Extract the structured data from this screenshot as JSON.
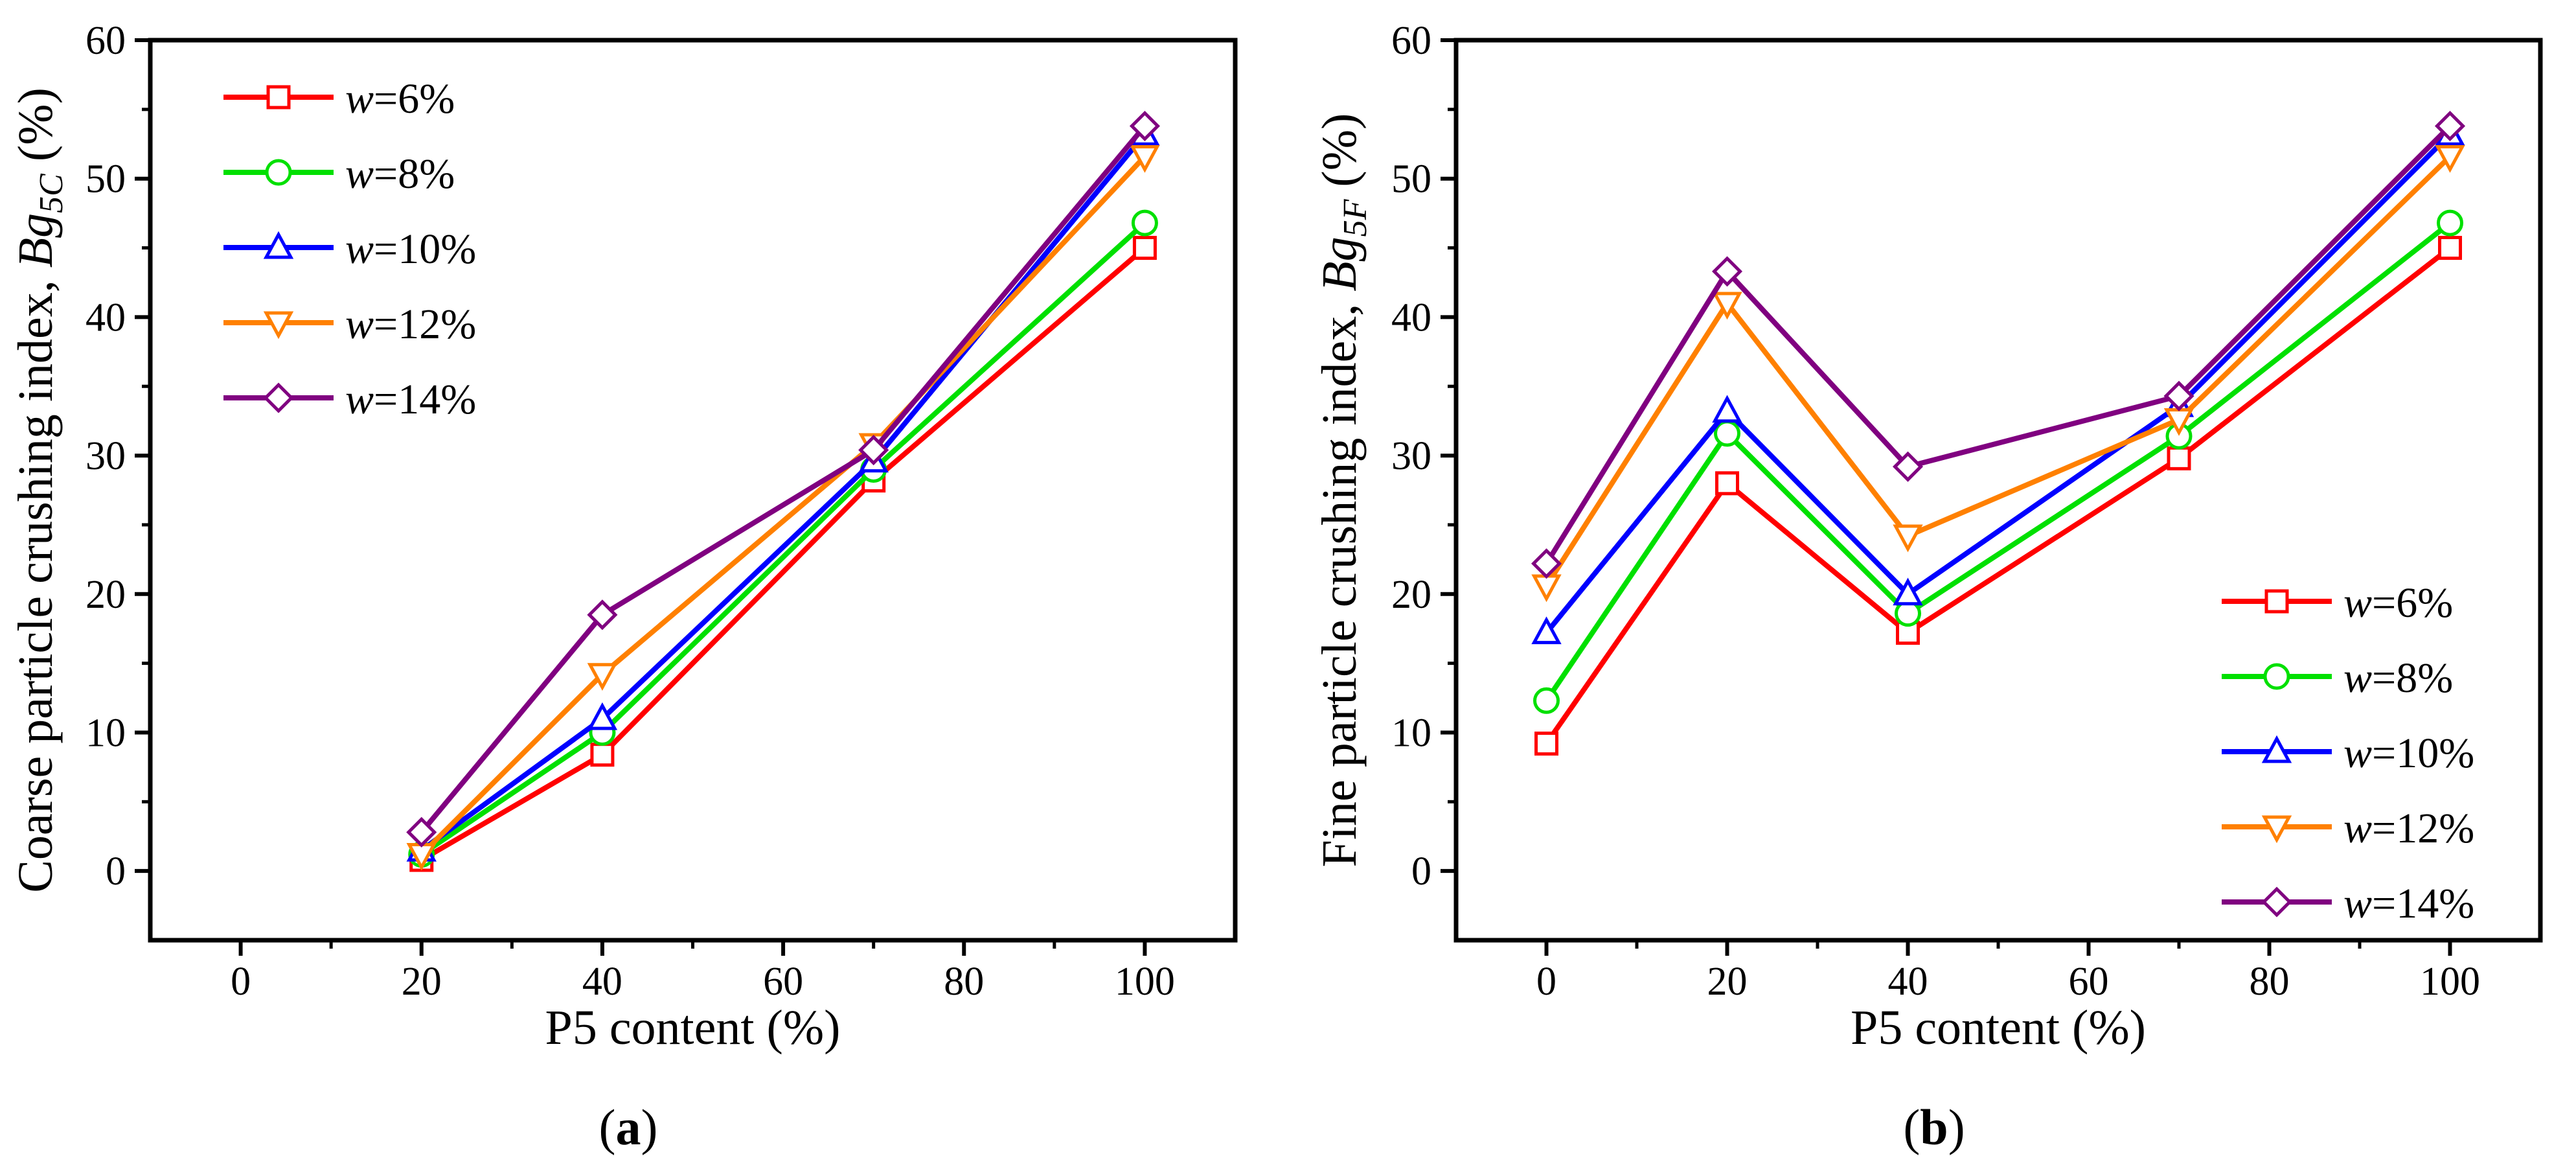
{
  "chart_data": [
    {
      "type": "line",
      "panel_label": "a",
      "xlabel": "P5 content (%)",
      "ylabel_prefix": "Coarse particle crushing index, ",
      "ylabel_var": "Bg",
      "ylabel_sub": "5C",
      "ylabel_suffix": " (%)",
      "xlim": [
        -10,
        110
      ],
      "ylim": [
        -5,
        60
      ],
      "xticks": [
        0,
        20,
        40,
        60,
        80,
        100
      ],
      "yticks": [
        0,
        10,
        20,
        30,
        40,
        50,
        60
      ],
      "legend_position": "top-left",
      "x": [
        20,
        40,
        70,
        100
      ],
      "series": [
        {
          "name_var": "w",
          "name_val": "=6%",
          "color": "#ff0000",
          "marker": "square",
          "values": [
            0.8,
            8.4,
            28.2,
            45.0
          ]
        },
        {
          "name_var": "w",
          "name_val": "=8%",
          "color": "#00e000",
          "marker": "circle",
          "values": [
            1.2,
            10.0,
            29.0,
            46.8
          ]
        },
        {
          "name_var": "w",
          "name_val": "=10%",
          "color": "#0000ff",
          "marker": "triangle-up",
          "values": [
            1.5,
            11.0,
            29.6,
            53.2
          ]
        },
        {
          "name_var": "w",
          "name_val": "=12%",
          "color": "#ff8000",
          "marker": "triangle-down",
          "values": [
            1.2,
            14.2,
            30.8,
            51.6
          ]
        },
        {
          "name_var": "w",
          "name_val": "=14%",
          "color": "#800080",
          "marker": "diamond",
          "values": [
            2.8,
            18.5,
            30.4,
            53.8
          ]
        }
      ]
    },
    {
      "type": "line",
      "panel_label": "b",
      "xlabel": "P5 content (%)",
      "ylabel_prefix": "Fine particle crushing index, ",
      "ylabel_var": "Bg",
      "ylabel_sub": "5F",
      "ylabel_suffix": " (%)",
      "xlim": [
        -10,
        110
      ],
      "ylim": [
        -5,
        60
      ],
      "xticks": [
        0,
        20,
        40,
        60,
        80,
        100
      ],
      "yticks": [
        0,
        10,
        20,
        30,
        40,
        50,
        60
      ],
      "legend_position": "bottom-right",
      "x": [
        0,
        20,
        40,
        70,
        100
      ],
      "series": [
        {
          "name_var": "w",
          "name_val": "=6%",
          "color": "#ff0000",
          "marker": "square",
          "values": [
            9.2,
            28.0,
            17.2,
            29.8,
            45.0
          ]
        },
        {
          "name_var": "w",
          "name_val": "=8%",
          "color": "#00e000",
          "marker": "circle",
          "values": [
            12.3,
            31.6,
            18.6,
            31.4,
            46.8
          ]
        },
        {
          "name_var": "w",
          "name_val": "=10%",
          "color": "#0000ff",
          "marker": "triangle-up",
          "values": [
            17.2,
            33.2,
            20.0,
            33.6,
            53.2
          ]
        },
        {
          "name_var": "w",
          "name_val": "=12%",
          "color": "#ff8000",
          "marker": "triangle-down",
          "values": [
            20.6,
            41.0,
            24.2,
            32.6,
            51.6
          ]
        },
        {
          "name_var": "w",
          "name_val": "=14%",
          "color": "#800080",
          "marker": "diamond",
          "values": [
            22.2,
            43.3,
            29.2,
            34.3,
            53.8
          ]
        }
      ]
    }
  ]
}
